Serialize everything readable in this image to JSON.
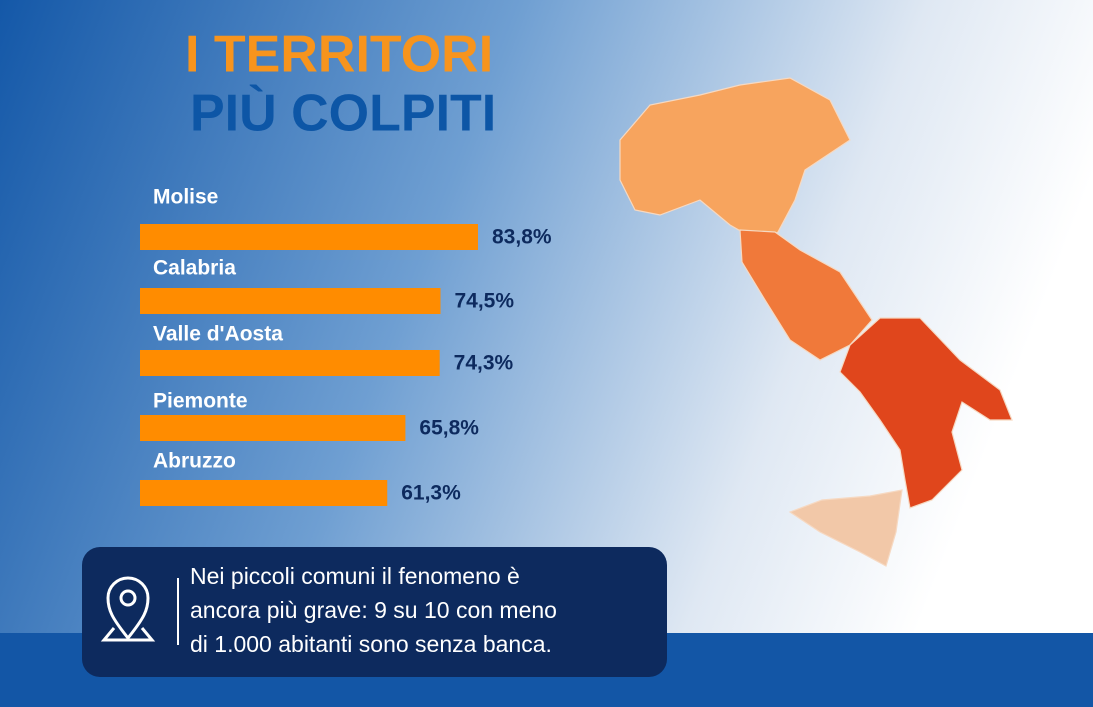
{
  "chart_data": {
    "type": "bar",
    "orientation": "horizontal",
    "title": "I TERRITORI",
    "subtitle": "PIÙ COLPITI",
    "categories": [
      "Molise",
      "Calabria",
      "Valle d'Aosta",
      "Piemonte",
      "Abruzzo"
    ],
    "values": [
      83.8,
      74.5,
      74.3,
      65.8,
      61.3
    ],
    "value_labels": [
      "83,8%",
      "74,5%",
      "74,3%",
      "65,8%",
      "61,3%"
    ],
    "color": "#ff8c00"
  },
  "note": [
    "Nei piccoli comuni il fenomeno è",
    "ancora più grave: 9 su 10 con meno",
    "di 1.000 abitanti sono senza banca."
  ]
}
